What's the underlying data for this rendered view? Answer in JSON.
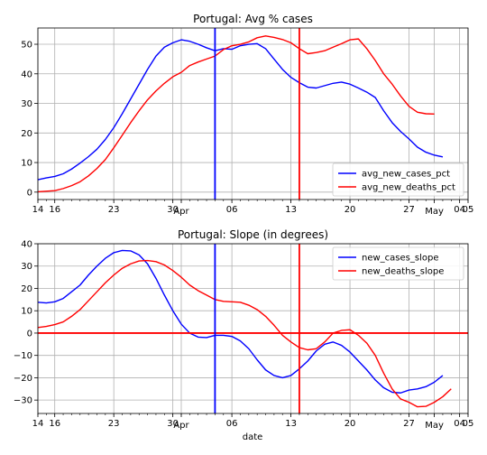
{
  "xlabel": "date",
  "x_ticks": [
    {
      "day": 14,
      "label": "14"
    },
    {
      "day": 16,
      "label": "16"
    },
    {
      "day": 23,
      "label": "23"
    },
    {
      "day": 30,
      "label": "30"
    },
    {
      "day": 31,
      "label": "Apr"
    },
    {
      "day": 37,
      "label": "06"
    },
    {
      "day": 44,
      "label": "13"
    },
    {
      "day": 51,
      "label": "20"
    },
    {
      "day": 58,
      "label": "27"
    },
    {
      "day": 61,
      "label": "May"
    },
    {
      "day": 64,
      "label": "04"
    },
    {
      "day": 65,
      "label": "05"
    }
  ],
  "xlim": [
    14,
    65
  ],
  "colors": {
    "blue": "#0000ff",
    "red": "#ff0000",
    "grid": "#b0b0b0"
  },
  "chart_data": [
    {
      "type": "line",
      "title": "Portugal: Avg % cases",
      "ylim": [
        -2.5,
        55.5
      ],
      "yticks": [
        0,
        10,
        20,
        30,
        40,
        50
      ],
      "grid": true,
      "legend_position": "lower-right",
      "vlines": [
        {
          "x": 35,
          "color": "#0000ff"
        },
        {
          "x": 45,
          "color": "#ff0000"
        }
      ],
      "hlines": [],
      "series": [
        {
          "name": "avg_new_cases_pct",
          "color": "#0000ff",
          "x": [
            14,
            15,
            16,
            17,
            18,
            19,
            20,
            21,
            22,
            23,
            24,
            25,
            26,
            27,
            28,
            29,
            30,
            31,
            32,
            33,
            34,
            35,
            36,
            37,
            38,
            39,
            40,
            41,
            42,
            43,
            44,
            45,
            46,
            47,
            48,
            49,
            50,
            51,
            52,
            53,
            54,
            55,
            56,
            57,
            58,
            59,
            60,
            61,
            62,
            63,
            64,
            65
          ],
          "y": [
            4.2,
            4.8,
            5.3,
            6.2,
            7.8,
            9.8,
            12.0,
            14.5,
            17.8,
            21.8,
            26.5,
            31.5,
            36.5,
            41.5,
            46.0,
            49.0,
            50.5,
            51.5,
            51.0,
            50.0,
            48.8,
            47.8,
            48.5,
            48.3,
            49.5,
            50.0,
            50.2,
            48.5,
            45.0,
            41.5,
            38.8,
            37.0,
            35.5,
            35.2,
            36.0,
            36.8,
            37.2,
            36.5,
            35.2,
            33.8,
            32.0,
            27.5,
            23.5,
            20.5,
            18.0,
            15.2,
            13.5,
            12.5,
            11.9,
            null,
            null,
            null
          ]
        },
        {
          "name": "avg_new_deaths_pct",
          "color": "#ff0000",
          "x": [
            14,
            15,
            16,
            17,
            18,
            19,
            20,
            21,
            22,
            23,
            24,
            25,
            26,
            27,
            28,
            29,
            30,
            31,
            32,
            33,
            34,
            35,
            36,
            37,
            38,
            39,
            40,
            41,
            42,
            43,
            44,
            45,
            46,
            47,
            48,
            49,
            50,
            51,
            52,
            53,
            54,
            55,
            56,
            57,
            58,
            59,
            60,
            61,
            62,
            63,
            64,
            65
          ],
          "y": [
            0.1,
            0.3,
            0.5,
            1.2,
            2.2,
            3.5,
            5.5,
            8.0,
            11.0,
            15.0,
            19.2,
            23.5,
            27.5,
            31.2,
            34.2,
            36.8,
            39.0,
            40.5,
            42.8,
            44.0,
            45.0,
            46.0,
            48.2,
            49.5,
            50.0,
            50.8,
            52.2,
            52.8,
            52.3,
            51.6,
            50.5,
            48.5,
            46.8,
            47.2,
            47.8,
            49.0,
            50.2,
            51.5,
            51.8,
            48.5,
            44.5,
            40.0,
            36.5,
            32.5,
            29.0,
            27.0,
            26.5,
            26.4,
            null,
            null,
            null,
            null
          ]
        }
      ]
    },
    {
      "type": "line",
      "title": "Portugal: Slope (in degrees)",
      "ylim": [
        -36,
        40
      ],
      "yticks": [
        -30,
        -20,
        -10,
        0,
        10,
        20,
        30,
        40
      ],
      "grid": true,
      "legend_position": "upper-right",
      "vlines": [
        {
          "x": 35,
          "color": "#0000ff"
        },
        {
          "x": 45,
          "color": "#ff0000"
        }
      ],
      "hlines": [
        {
          "y": 0,
          "color": "#ff0000"
        }
      ],
      "series": [
        {
          "name": "new_cases_slope",
          "color": "#0000ff",
          "x": [
            14,
            15,
            16,
            17,
            18,
            19,
            20,
            21,
            22,
            23,
            24,
            25,
            26,
            27,
            28,
            29,
            30,
            31,
            32,
            33,
            34,
            35,
            36,
            37,
            38,
            39,
            40,
            41,
            42,
            43,
            44,
            45,
            46,
            47,
            48,
            49,
            50,
            51,
            52,
            53,
            54,
            55,
            56,
            57,
            58,
            59,
            60,
            61,
            62,
            63,
            64,
            65
          ],
          "y": [
            13.8,
            13.5,
            14.0,
            15.5,
            18.5,
            21.5,
            26.0,
            30.0,
            33.5,
            36.0,
            37.0,
            36.8,
            35.0,
            31.0,
            24.5,
            17.0,
            10.0,
            4.0,
            0.0,
            -1.8,
            -2.0,
            -1.0,
            -1.0,
            -1.5,
            -3.5,
            -7.0,
            -12.0,
            -16.5,
            -19.0,
            -20.0,
            -19.0,
            -16.0,
            -12.5,
            -8.0,
            -5.0,
            -4.0,
            -5.5,
            -8.5,
            -12.5,
            -16.5,
            -21.0,
            -24.5,
            -26.5,
            -26.8,
            -25.5,
            -25.0,
            -24.0,
            -22.0,
            -19.0,
            null,
            null,
            null
          ]
        },
        {
          "name": "new_deaths_slope",
          "color": "#ff0000",
          "x": [
            14,
            15,
            16,
            17,
            18,
            19,
            20,
            21,
            22,
            23,
            24,
            25,
            26,
            27,
            28,
            29,
            30,
            31,
            32,
            33,
            34,
            35,
            36,
            37,
            38,
            39,
            40,
            41,
            42,
            43,
            44,
            45,
            46,
            47,
            48,
            49,
            50,
            51,
            52,
            53,
            54,
            55,
            56,
            57,
            58,
            59,
            60,
            61,
            62,
            63,
            64,
            65
          ],
          "y": [
            2.5,
            3.0,
            3.8,
            5.0,
            7.5,
            10.5,
            14.5,
            18.5,
            22.5,
            26.0,
            29.0,
            31.0,
            32.3,
            32.5,
            32.0,
            30.5,
            28.0,
            25.0,
            21.5,
            19.0,
            17.0,
            15.0,
            14.2,
            14.0,
            13.8,
            12.5,
            10.5,
            7.5,
            3.5,
            -1.0,
            -4.0,
            -6.5,
            -7.5,
            -7.0,
            -4.0,
            0.0,
            1.2,
            1.5,
            -1.0,
            -4.5,
            -10.0,
            -18.0,
            -25.0,
            -29.5,
            -31.0,
            -33.0,
            -32.8,
            -31.0,
            -28.5,
            -25.0,
            null,
            null
          ]
        }
      ]
    }
  ]
}
